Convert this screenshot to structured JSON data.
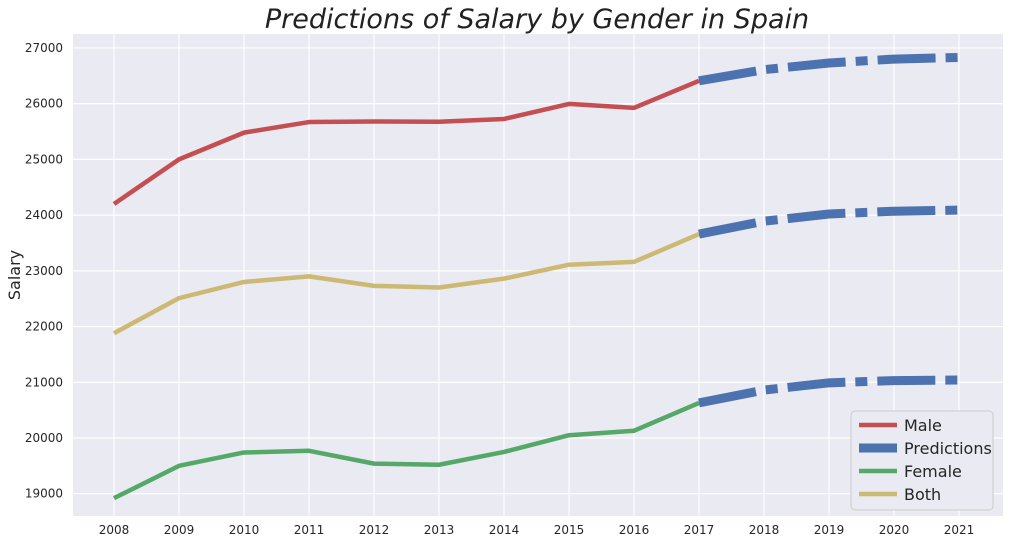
{
  "chart_data": {
    "type": "line",
    "title": "Predictions of Salary by Gender in Spain",
    "xlabel": "",
    "ylabel": "Salary",
    "x": [
      "2008",
      "2009",
      "2010",
      "2011",
      "2012",
      "2013",
      "2014",
      "2015",
      "2016",
      "2017",
      "2018",
      "2019",
      "2020",
      "2021"
    ],
    "ylim": [
      18600,
      27250
    ],
    "yticks": [
      19000,
      20000,
      21000,
      22000,
      23000,
      24000,
      25000,
      26000,
      27000
    ],
    "grid": true,
    "legend_position": "bottom-right",
    "series": [
      {
        "name": "Male",
        "color": "#c44e52",
        "style": "solid",
        "x": [
          "2008",
          "2009",
          "2010",
          "2011",
          "2012",
          "2013",
          "2014",
          "2015",
          "2016",
          "2017"
        ],
        "values": [
          24200,
          25000,
          25480,
          25670,
          25680,
          25675,
          25725,
          25995,
          25925,
          26410
        ]
      },
      {
        "name": "Predictions",
        "color": "#4c72b0",
        "style": "dashdot",
        "segments": [
          {
            "x": [
              "2017",
              "2018",
              "2019",
              "2020",
              "2021"
            ],
            "values": [
              26410,
              26610,
              26730,
              26800,
              26830
            ]
          },
          {
            "x": [
              "2017",
              "2018",
              "2019",
              "2020",
              "2021"
            ],
            "values": [
              23660,
              23890,
              24020,
              24070,
              24090
            ]
          },
          {
            "x": [
              "2017",
              "2018",
              "2019",
              "2020",
              "2021"
            ],
            "values": [
              20630,
              20860,
              20990,
              21030,
              21040
            ]
          }
        ]
      },
      {
        "name": "Female",
        "color": "#55a868",
        "style": "solid",
        "x": [
          "2008",
          "2009",
          "2010",
          "2011",
          "2012",
          "2013",
          "2014",
          "2015",
          "2016",
          "2017"
        ],
        "values": [
          18920,
          19500,
          19740,
          19770,
          19540,
          19520,
          19750,
          20050,
          20130,
          20630
        ]
      },
      {
        "name": "Both",
        "color": "#ccb974",
        "style": "solid",
        "x": [
          "2008",
          "2009",
          "2010",
          "2011",
          "2012",
          "2013",
          "2014",
          "2015",
          "2016",
          "2017"
        ],
        "values": [
          21880,
          22510,
          22800,
          22900,
          22730,
          22700,
          22860,
          23110,
          23160,
          23660
        ]
      }
    ]
  }
}
